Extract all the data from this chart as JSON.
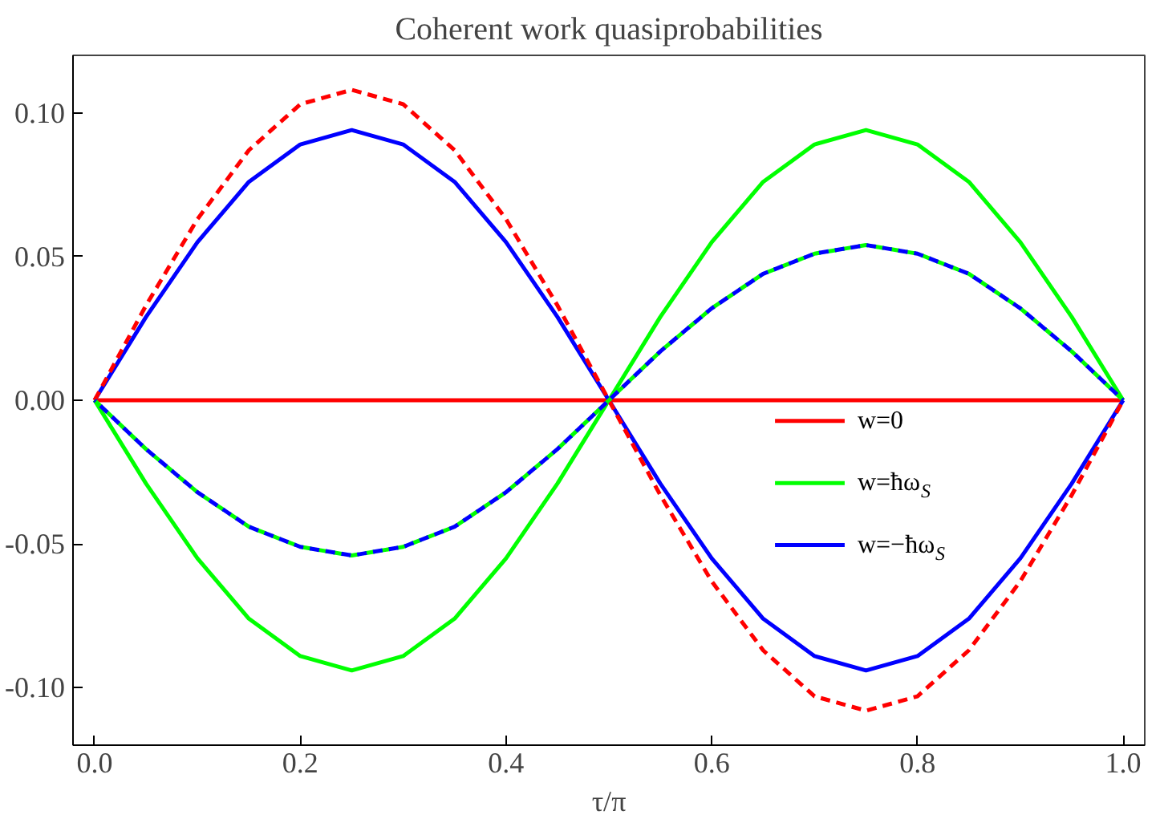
{
  "chart_data": {
    "type": "line",
    "title": "Coherent work quasiprobabilities",
    "xlabel": "τ/π",
    "x": [
      0,
      0.05,
      0.1,
      0.15,
      0.2,
      0.25,
      0.3,
      0.35,
      0.4,
      0.45,
      0.5,
      0.55,
      0.6,
      0.65,
      0.7,
      0.75,
      0.8,
      0.85,
      0.9,
      0.95,
      1.0
    ],
    "series": [
      {
        "name": "w=0",
        "color": "#ff0000",
        "line_style": "solid",
        "values": [
          0,
          0,
          0,
          0,
          0,
          0,
          0,
          0,
          0,
          0,
          0,
          0,
          0,
          0,
          0,
          0,
          0,
          0,
          0,
          0,
          0
        ]
      },
      {
        "name": "w=ħω$_{S}$",
        "color": "#00ff00",
        "line_style": "solid",
        "values": [
          0,
          -0.029,
          -0.055,
          -0.076,
          -0.089,
          -0.094,
          -0.089,
          -0.076,
          -0.055,
          -0.029,
          0,
          0.029,
          0.055,
          0.076,
          0.089,
          0.094,
          0.089,
          0.076,
          0.055,
          0.029,
          0
        ]
      },
      {
        "name": "w=−ħω$_{S}$",
        "color": "#0000ff",
        "line_style": "solid",
        "values": [
          0,
          0.029,
          0.055,
          0.076,
          0.089,
          0.094,
          0.089,
          0.076,
          0.055,
          0.029,
          0,
          -0.029,
          -0.055,
          -0.076,
          -0.089,
          -0.094,
          -0.089,
          -0.076,
          -0.055,
          -0.029,
          0
        ]
      },
      {
        "color": "#ff0000",
        "line_style": "dashed",
        "values": [
          0,
          0.033,
          0.063,
          0.087,
          0.103,
          0.108,
          0.103,
          0.087,
          0.063,
          0.033,
          0,
          -0.033,
          -0.063,
          -0.087,
          -0.103,
          -0.108,
          -0.103,
          -0.087,
          -0.063,
          -0.033,
          0
        ]
      },
      {
        "color": "#00ff00",
        "line_style": "dashed",
        "values": [
          0,
          -0.017,
          -0.032,
          -0.044,
          -0.051,
          -0.054,
          -0.051,
          -0.044,
          -0.032,
          -0.017,
          0,
          0.017,
          0.032,
          0.044,
          0.051,
          0.054,
          0.051,
          0.044,
          0.032,
          0.017,
          0
        ]
      },
      {
        "color": "#0000ff",
        "line_style": "dashed",
        "values": [
          0,
          -0.017,
          -0.032,
          -0.044,
          -0.051,
          -0.054,
          -0.051,
          -0.044,
          -0.032,
          -0.017,
          0,
          0.017,
          0.032,
          0.044,
          0.051,
          0.054,
          0.051,
          0.044,
          0.032,
          0.017,
          0
        ]
      }
    ],
    "xlim": [
      -0.021,
      1.021
    ],
    "ylim": [
      -0.12,
      0.12
    ],
    "xticks": [
      {
        "value": 0,
        "label": "0.0"
      },
      {
        "value": 0.2,
        "label": "0.2"
      },
      {
        "value": 0.4,
        "label": "0.4"
      },
      {
        "value": 0.6,
        "label": "0.6"
      },
      {
        "value": 0.8,
        "label": "0.8"
      },
      {
        "value": 1.0,
        "label": "1.0"
      }
    ],
    "yticks": [
      {
        "value": -0.1,
        "label": "-0.10"
      },
      {
        "value": -0.05,
        "label": "-0.05"
      },
      {
        "value": 0,
        "label": "0.00"
      },
      {
        "value": 0.05,
        "label": "0.05"
      },
      {
        "value": 0.1,
        "label": "0.10"
      }
    ],
    "grid": false,
    "legend": "right",
    "marker": "none"
  }
}
